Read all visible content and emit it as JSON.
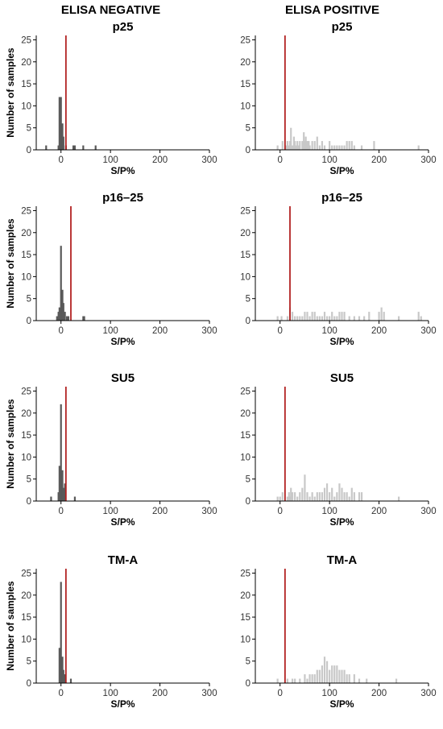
{
  "column_titles": [
    "ELISA NEGATIVE",
    "ELISA POSITIVE"
  ],
  "colors": {
    "negative_bar": "#595959",
    "positive_bar": "#c8c8c8",
    "cutoff_line": "#b22222",
    "baseline": "#d9d9d9"
  },
  "chart_data": [
    {
      "type": "bar",
      "title": "p25",
      "xlabel": "S/P%",
      "ylabel": "Number of samples",
      "xlim": [
        -50,
        300
      ],
      "ylim": [
        0,
        26
      ],
      "xticks": [
        0,
        100,
        200,
        300
      ],
      "yticks": [
        0,
        5,
        10,
        15,
        20,
        25
      ],
      "cutoff": 10,
      "x": [
        -30,
        -5,
        -3,
        0,
        3,
        5,
        10,
        25,
        28,
        45,
        70
      ],
      "values": [
        1,
        1,
        12,
        12,
        6,
        3,
        1,
        1,
        1,
        1,
        1
      ]
    },
    {
      "type": "bar",
      "title": "p25",
      "xlabel": "S/P%",
      "ylabel": "",
      "xlim": [
        -50,
        300
      ],
      "ylim": [
        0,
        26
      ],
      "xticks": [
        0,
        100,
        200,
        300
      ],
      "yticks": [
        0,
        5,
        10,
        15,
        20,
        25
      ],
      "cutoff": 10,
      "x": [
        -5,
        5,
        12,
        15,
        18,
        20,
        22,
        25,
        28,
        30,
        33,
        35,
        38,
        40,
        45,
        48,
        50,
        52,
        55,
        58,
        60,
        65,
        70,
        75,
        80,
        85,
        90,
        100,
        105,
        110,
        115,
        120,
        125,
        130,
        135,
        140,
        145,
        150,
        165,
        190,
        280
      ],
      "values": [
        1,
        2,
        1,
        2,
        1,
        2,
        5,
        1,
        3,
        2,
        1,
        2,
        1,
        2,
        2,
        4,
        2,
        3,
        2,
        2,
        1,
        2,
        2,
        3,
        1,
        2,
        1,
        2,
        1,
        1,
        1,
        1,
        1,
        1,
        2,
        2,
        2,
        1,
        1,
        2,
        1
      ]
    },
    {
      "type": "bar",
      "title": "p16–25",
      "xlabel": "S/P%",
      "ylabel": "Number of samples",
      "xlim": [
        -50,
        300
      ],
      "ylim": [
        0,
        26
      ],
      "xticks": [
        0,
        100,
        200,
        300
      ],
      "yticks": [
        0,
        5,
        10,
        15,
        20,
        25
      ],
      "cutoff": 20,
      "x": [
        -8,
        -5,
        -3,
        0,
        3,
        5,
        8,
        12,
        15,
        45,
        47
      ],
      "values": [
        1,
        2,
        3,
        17,
        7,
        4,
        2,
        1,
        1,
        1,
        1
      ]
    },
    {
      "type": "bar",
      "title": "p16–25",
      "xlabel": "S/P%",
      "ylabel": "",
      "xlim": [
        -50,
        300
      ],
      "ylim": [
        0,
        26
      ],
      "xticks": [
        0,
        100,
        200,
        300
      ],
      "yticks": [
        0,
        5,
        10,
        15,
        20,
        25
      ],
      "cutoff": 20,
      "x": [
        -5,
        3,
        15,
        20,
        25,
        30,
        35,
        40,
        45,
        50,
        55,
        60,
        65,
        70,
        75,
        80,
        85,
        90,
        95,
        100,
        105,
        110,
        115,
        120,
        125,
        130,
        140,
        150,
        160,
        170,
        180,
        200,
        205,
        210,
        240,
        280,
        285
      ],
      "values": [
        1,
        1,
        1,
        3,
        2,
        1,
        1,
        1,
        1,
        2,
        2,
        1,
        2,
        2,
        1,
        1,
        1,
        2,
        1,
        1,
        2,
        1,
        1,
        2,
        2,
        2,
        1,
        1,
        1,
        1,
        2,
        2,
        3,
        2,
        1,
        2,
        1
      ]
    },
    {
      "type": "bar",
      "title": "SU5",
      "xlabel": "S/P%",
      "ylabel": "Number of samples",
      "xlim": [
        -50,
        300
      ],
      "ylim": [
        0,
        26
      ],
      "xticks": [
        0,
        100,
        200,
        300
      ],
      "yticks": [
        0,
        5,
        10,
        15,
        20,
        25
      ],
      "cutoff": 10,
      "x": [
        -20,
        -5,
        -3,
        0,
        3,
        5,
        8,
        28
      ],
      "values": [
        1,
        2,
        8,
        22,
        7,
        3,
        4,
        1
      ]
    },
    {
      "type": "bar",
      "title": "SU5",
      "xlabel": "S/P%",
      "ylabel": "",
      "xlim": [
        -50,
        300
      ],
      "ylim": [
        0,
        26
      ],
      "xticks": [
        0,
        100,
        200,
        300
      ],
      "yticks": [
        0,
        5,
        10,
        15,
        20,
        25
      ],
      "cutoff": 10,
      "x": [
        -5,
        0,
        5,
        15,
        18,
        20,
        22,
        25,
        30,
        35,
        40,
        45,
        50,
        55,
        60,
        65,
        70,
        75,
        80,
        85,
        90,
        95,
        100,
        105,
        110,
        115,
        120,
        125,
        130,
        135,
        140,
        145,
        150,
        160,
        165,
        240
      ],
      "values": [
        1,
        1,
        2,
        1,
        2,
        1,
        3,
        2,
        2,
        1,
        2,
        3,
        6,
        2,
        1,
        2,
        1,
        2,
        2,
        2,
        3,
        4,
        2,
        3,
        1,
        2,
        4,
        3,
        2,
        2,
        1,
        3,
        2,
        2,
        2,
        1
      ]
    },
    {
      "type": "bar",
      "title": "TM-A",
      "xlabel": "S/P%",
      "ylabel": "Number of samples",
      "xlim": [
        -50,
        300
      ],
      "ylim": [
        0,
        26
      ],
      "xticks": [
        0,
        100,
        200,
        300
      ],
      "yticks": [
        0,
        5,
        10,
        15,
        20,
        25
      ],
      "cutoff": 10,
      "x": [
        -3,
        0,
        3,
        5,
        8,
        20
      ],
      "values": [
        8,
        23,
        6,
        3,
        2,
        1
      ]
    },
    {
      "type": "bar",
      "title": "TM-A",
      "xlabel": "S/P%",
      "ylabel": "",
      "xlim": [
        -50,
        300
      ],
      "ylim": [
        0,
        26
      ],
      "xticks": [
        0,
        100,
        200,
        300
      ],
      "yticks": [
        0,
        5,
        10,
        15,
        20,
        25
      ],
      "cutoff": 10,
      "x": [
        -5,
        15,
        25,
        30,
        40,
        50,
        55,
        60,
        65,
        70,
        75,
        80,
        85,
        90,
        95,
        100,
        105,
        110,
        115,
        120,
        125,
        130,
        135,
        140,
        150,
        160,
        175,
        235
      ],
      "values": [
        1,
        1,
        1,
        1,
        1,
        2,
        1,
        2,
        2,
        2,
        3,
        3,
        4,
        6,
        5,
        3,
        4,
        4,
        4,
        3,
        3,
        3,
        2,
        2,
        2,
        1,
        1,
        1
      ]
    }
  ]
}
